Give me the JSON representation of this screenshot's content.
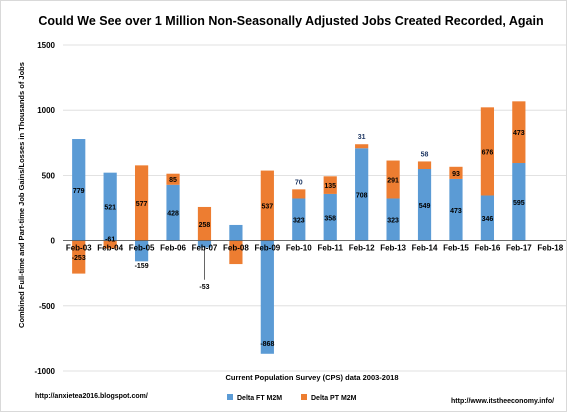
{
  "chart_data": {
    "type": "bar",
    "stacked": true,
    "title": "Could We See over 1 Million Non-Seasonally Adjusted Jobs Created Recorded, Again",
    "xlabel": "Current Population Survey (CPS) data 2003-2018",
    "ylabel": "Combined Full-time and Part-time Job Gains/Losses in Thousands of Jobs",
    "ylim": [
      -1000,
      1500
    ],
    "yticks": [
      -1000,
      -500,
      0,
      500,
      1000,
      1500
    ],
    "grid": true,
    "legend_position": "bottom",
    "categories": [
      "Feb-03",
      "Feb-04",
      "Feb-05",
      "Feb-06",
      "Feb-07",
      "Feb-08",
      "Feb-09",
      "Feb-10",
      "Feb-11",
      "Feb-12",
      "Feb-13",
      "Feb-14",
      "Feb-15",
      "Feb-16",
      "Feb-17",
      "Feb-18"
    ],
    "series": [
      {
        "name": "Delta FT M2M",
        "color": "#5b9bd5",
        "values": [
          779,
          521,
          -159,
          428,
          -53,
          120,
          -868,
          323,
          358,
          708,
          323,
          549,
          473,
          346,
          595,
          null
        ],
        "labels": [
          "779",
          "521",
          "-159",
          "428",
          "-53",
          "",
          "-868",
          "323",
          "358",
          "708",
          "323",
          "549",
          "473",
          "346",
          "595",
          ""
        ]
      },
      {
        "name": "Delta PT M2M",
        "color": "#ed7d31",
        "values": [
          -253,
          -61,
          577,
          85,
          258,
          -180,
          537,
          70,
          135,
          31,
          291,
          58,
          93,
          676,
          473,
          null
        ],
        "labels": [
          "-253",
          "-61",
          "577",
          "85",
          "258",
          "",
          "537",
          "70",
          "135",
          "31",
          "291",
          "58",
          "93",
          "676",
          "473",
          ""
        ]
      }
    ]
  },
  "footer": {
    "left_url": "http://anxietea2016.blogspot.com/",
    "right_url": "http://www.itstheeconomy.info/"
  }
}
